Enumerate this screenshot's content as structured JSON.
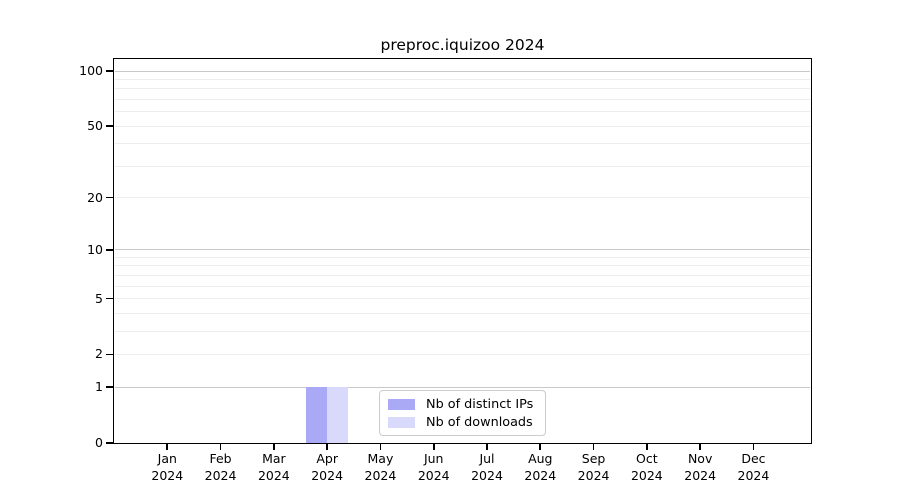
{
  "page": {
    "background": "#ffffff",
    "text_color": "#000000"
  },
  "chart_data": {
    "type": "bar",
    "title": "preproc.iquizoo 2024",
    "x_months": [
      "Jan",
      "Feb",
      "Mar",
      "Apr",
      "May",
      "Jun",
      "Jul",
      "Aug",
      "Sep",
      "Oct",
      "Nov",
      "Dec"
    ],
    "x_year_label": "2024",
    "y_scale": "log1p",
    "ylim": [
      0,
      116
    ],
    "y_ticks": [
      0,
      1,
      2,
      5,
      10,
      20,
      50,
      100
    ],
    "grid": {
      "major_values": [
        1,
        10,
        100
      ],
      "minor_values": [
        2,
        3,
        4,
        5,
        6,
        7,
        8,
        9,
        20,
        30,
        40,
        50,
        60,
        70,
        80,
        90
      ],
      "major_color": "#c9c9c9",
      "minor_color": "#ededed"
    },
    "series": [
      {
        "name": "Nb of distinct IPs",
        "color": "#a9a9f6",
        "values": [
          0,
          0,
          0,
          1,
          0,
          0,
          0,
          0,
          0,
          0,
          0,
          0
        ]
      },
      {
        "name": "Nb of downloads",
        "color": "#d9d9fb",
        "values": [
          0,
          0,
          0,
          1,
          0,
          0,
          0,
          0,
          0,
          0,
          0,
          0
        ]
      }
    ],
    "legend": {
      "position": "bottom-center"
    },
    "axis_color": "#000000"
  }
}
